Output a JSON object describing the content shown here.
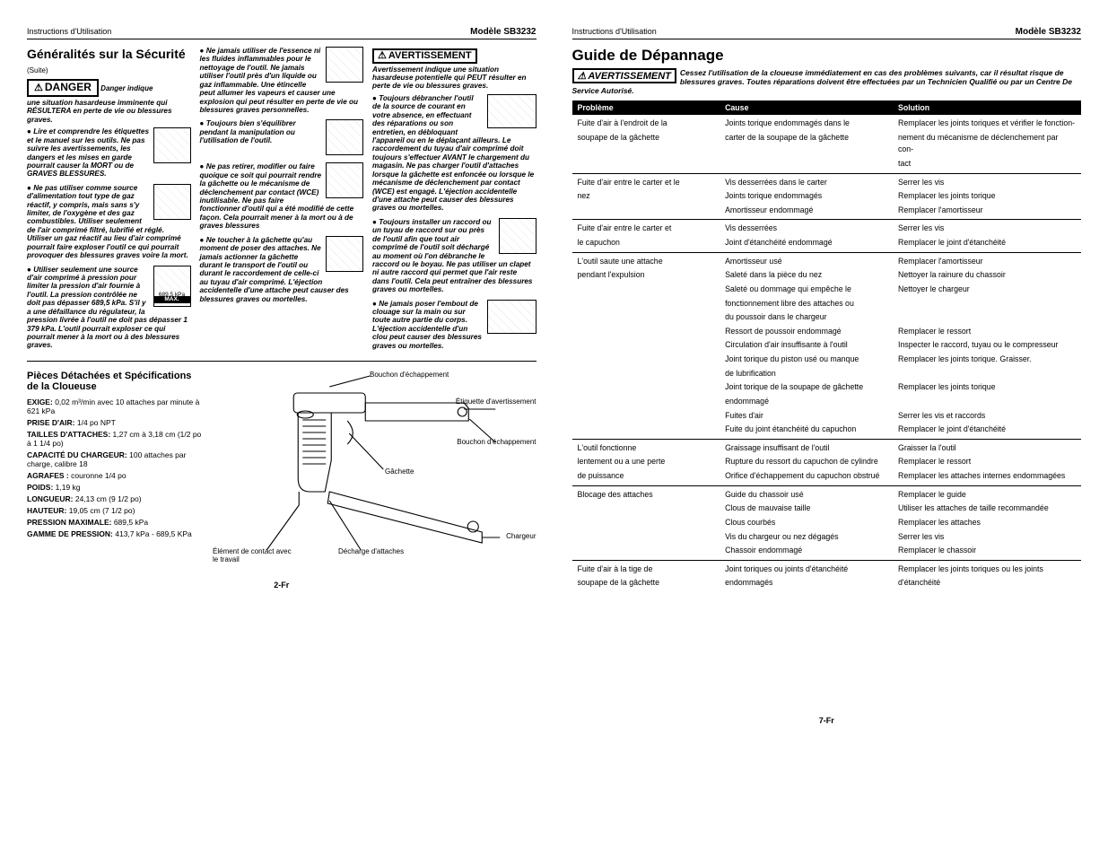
{
  "header": {
    "left": "Instructions d'Utilisation",
    "right": "Modèle SB3232"
  },
  "leftPage": {
    "title": "Généralités sur la Sécurité",
    "suite": "(Suite)",
    "dangerLabel": "DANGER",
    "dangerLead": "Danger indique",
    "dangerText": "une situation hasardeuse imminente qui RÉSULTERA en perte de vie ou blessures graves.",
    "b1": "Lire et comprendre les étiquettes et le manuel sur les outils. Ne pas suivre les avertissements, les dangers et les mises en garde pourrait causer la MORT ou de GRAVES BLESSURES.",
    "b2": "Ne pas utiliser comme source d'alimentation tout type de gaz réactif, y compris, mais sans s'y limiter, de l'oxygène et des gaz combustibles. Utiliser seulement de l'air comprimé filtré, lubrifié et réglé. Utiliser un gaz réactif au lieu d'air comprimé pourrait faire exploser l'outil ce qui pourrait provoquer des blessures graves voire la mort.",
    "b3a": "Utiliser seulement une source d'air comprimé à pression pour limiter la pression d'air fournie à l'outil. La pression",
    "b3b": "contrôlée ne doit pas dépasser 689,5 kPa. S'il y a une défaillance du régulateur, la pression livrée à l'outil ne doit pas dépasser 1 379 kPa. L'outil pourrait exploser ce qui pourrait mener à la mort ou à des blessures graves.",
    "pressLabel": "689,5 kPa",
    "maxLabel": "MAX.",
    "c1": "Ne jamais utiliser de l'essence ni les fluides inflammables pour le nettoyage de l'outil. Ne jamais utiliser l'outil près d'un liquide ou gaz inflammable. Une étincelle peut allumer les vapeurs et causer une explosion qui peut résulter en perte de vie ou blessures graves personnelles.",
    "c2": "Toujours bien s'équilibrer pendant la manipulation ou l'utilisation de l'outil.",
    "c3": "Ne pas retirer, modifier ou faire quoique ce soit qui pourrait rendre la gâchette ou le mécanisme de déclenchement par contact (WCE) inutilisable. Ne pas faire fonctionner d'outil qui a été modifié de cette façon. Cela pourrait mener à la mort ou à de graves blessures",
    "c4": "Ne toucher à la gâchette qu'au moment de poser des attaches. Ne jamais actionner la gâchette durant le transport de l'outil ou durant le raccordement de celle-ci au tuyau d'air comprimé. L'éjection accidentelle d'une attache peut causer des blessures graves ou mortelles.",
    "avertLabel": "AVERTISSEMENT",
    "avertText": "Avertissement indique une situation hasardeuse potentielle qui PEUT résulter en perte de vie ou blessures graves.",
    "r1": "Toujours débrancher l'outil de la source de courant en votre absence, en effectuant des réparations ou son entretien, en débloquant l'appareil ou en le déplaçant ailleurs. Le raccordement du tuyau d'air comprimé doit toujours s'effectuer AVANT le chargement du magasin. Ne pas charger l'outil d'attaches lorsque la gâchette est enfoncée ou lorsque le mécanisme de déclenchement par contact (WCE) est engagé. L'éjection accidentelle d'une attache peut causer des blessures graves ou mortelles.",
    "r2": "Toujours installer un raccord ou un tuyau de raccord sur ou près de l'outil afin que tout air comprimé de l'outil soit déchargé au moment où l'on débranche le raccord ou le boyau.  Ne pas utiliser un clapet ni autre raccord qui permet que l'air reste dans l'outil. Cela peut entraîner des blessures graves ou mortelles.",
    "r3": "Ne jamais poser l'embout de clouage sur la main ou sur toute autre partie du corps. L'éjection accidentelle d'un clou peut causer des blessures graves ou mortelles.",
    "specTitle": "Pièces Détachées et Spécifications de la Cloueuse",
    "specs": [
      {
        "k": "EXIGE:",
        "v": "0,02 m³/min avec 10 attaches par minute à 621 kPa"
      },
      {
        "k": "PRISE D'AIR:",
        "v": "1/4 po NPT"
      },
      {
        "k": "TAILLES D'ATTACHES:",
        "v": "1,27 cm à 3,18 cm (1/2 po à 1 1/4 po)"
      },
      {
        "k": "CAPACITÉ DU CHARGEUR:",
        "v": "100 attaches par charge, calibre 18"
      },
      {
        "k": "AGRAFES :",
        "v": "couronne 1/4 po"
      },
      {
        "k": "POIDS:",
        "v": "1,19 kg"
      },
      {
        "k": "LONGUEUR:",
        "v": "24,13 cm (9 1/2 po)"
      },
      {
        "k": "HAUTEUR:",
        "v": "19,05 cm (7 1/2 po)"
      },
      {
        "k": "PRESSION MAXIMALE:",
        "v": "689,5 kPa"
      },
      {
        "k": "GAMME DE PRESSION:",
        "v": "413,7 kPa - 689,5 KPa"
      }
    ],
    "diagram": {
      "l1": "Bouchon d'échappement",
      "l2": "Étiquette d'avertissement",
      "l3": "Bouchon d'échappement",
      "l4": "Gâchette",
      "l5": "Chargeur",
      "l6": "Décharge d'attaches",
      "l7": "Élément de contact avec le travail"
    },
    "pageNum": "2-Fr"
  },
  "rightPage": {
    "title": "Guide de Dépannage",
    "avertLabel": "AVERTISSEMENT",
    "avertText": "Cessez l'utilisation de la cloueuse immédiatement en cas des problèmes suivants, car il résultat risque de blessures graves. Toutes réparations doivent être effectuées par un Technicien Qualifié ou par un Centre De Service Autorisé.",
    "th": {
      "p": "Problème",
      "c": "Cause",
      "s": "Solution"
    },
    "rows": [
      {
        "first": true,
        "p": "Fuite d'air à l'endroit de la",
        "c": "Joints torique endommagés dans le",
        "s": "Remplacer les joints toriques et vérifier le fonction-"
      },
      {
        "p": "soupape de la gâchette",
        "c": "carter de la soupape de la gâchette",
        "s": "nement du mécanisme de déclenchement par con-"
      },
      {
        "sep": true,
        "p": "",
        "c": "",
        "s": "tact"
      },
      {
        "first": true,
        "p": "Fuite d'air entre le carter et le",
        "c": "Vis desserrées dans le carter",
        "s": "Serrer les vis"
      },
      {
        "p": "nez",
        "c": "Joints torique endommagés",
        "s": "Remplacer les joints torique"
      },
      {
        "sep": true,
        "p": "",
        "c": "Amortisseur endommagé",
        "s": "Remplacer l'amortisseur"
      },
      {
        "first": true,
        "p": "Fuite d'air entre le carter et",
        "c": "Vis desserrées",
        "s": "Serrer les vis"
      },
      {
        "sep": true,
        "p": "le capuchon",
        "c": "Joint d'étanchéité endommagé",
        "s": "Remplacer le joint d'étanchéité"
      },
      {
        "first": true,
        "p": "L'outil saute une attache",
        "c": "Amortisseur usé",
        "s": "Remplacer l'amortisseur"
      },
      {
        "p": "pendant l'expulsion",
        "c": "Saleté dans la pièce du nez",
        "s": "Nettoyer la rainure du chassoir"
      },
      {
        "p": "",
        "c": "Saleté ou dommage qui empêche le",
        "s": "Nettoyer le chargeur"
      },
      {
        "p": "",
        "c": "fonctionnement libre des attaches ou",
        "s": ""
      },
      {
        "p": "",
        "c": "du poussoir dans le chargeur",
        "s": ""
      },
      {
        "p": "",
        "c": "Ressort de poussoir endommagé",
        "s": "Remplacer le ressort"
      },
      {
        "p": "",
        "c": "Circulation d'air insuffisante à l'outil",
        "s": "Inspecter le raccord, tuyau ou le compresseur"
      },
      {
        "p": "",
        "c": "Joint torique du piston usé ou manque",
        "s": "Remplacer les joints torique. Graisser."
      },
      {
        "p": "",
        "c": "de lubrification",
        "s": ""
      },
      {
        "p": "",
        "c": "Joint torique de la soupape de gâchette",
        "s": "Remplacer les joints torique"
      },
      {
        "p": "",
        "c": "endommagé",
        "s": ""
      },
      {
        "p": "",
        "c": "Fuites d'air",
        "s": "Serrer les vis et raccords"
      },
      {
        "sep": true,
        "p": "",
        "c": "Fuite du joint étanchéité du capuchon",
        "s": "Remplacer le joint d'étanchéité"
      },
      {
        "first": true,
        "p": "L'outil fonctionne",
        "c": "Graissage insuffisant de l'outil",
        "s": "Graisser la l'outil"
      },
      {
        "p": "lentement ou a une perte",
        "c": "Rupture du ressort du capuchon de cylindre",
        "s": "Remplacer le ressort"
      },
      {
        "sep": true,
        "p": "de puissance",
        "c": "Orifice d'échappement du capuchon obstrué",
        "s": "Remplacer les attaches internes endommagées"
      },
      {
        "first": true,
        "p": "Blocage des attaches",
        "c": "Guide du chassoir usé",
        "s": "Remplacer le guide"
      },
      {
        "p": "",
        "c": "Clous de mauvaise taille",
        "s": "Utiliser les attaches de taille recommandée"
      },
      {
        "p": "",
        "c": "Clous courbés",
        "s": "Remplacer les attaches"
      },
      {
        "p": "",
        "c": "Vis du chargeur ou nez dégagés",
        "s": "Serrer les vis"
      },
      {
        "sep": true,
        "p": "",
        "c": "Chassoir endommagé",
        "s": "Remplacer le chassoir"
      },
      {
        "first": true,
        "p": "Fuite d'air à la tige de",
        "c": "Joint toriques ou joints d'étanchéité",
        "s": "Remplacer les joints toriques ou les joints"
      },
      {
        "p": "soupape de la gâchette",
        "c": "endommagés",
        "s": "d'étanchéité"
      }
    ],
    "pageNum": "7-Fr"
  }
}
